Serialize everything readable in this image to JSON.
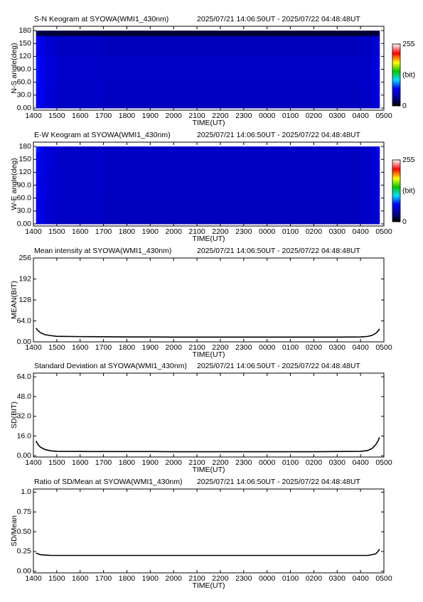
{
  "chart_data": [
    {
      "type": "heatmap",
      "title": "S-N Keogram at SYOWA(WMI1_430nm)",
      "subtitle": "2025/07/21 14:06:50UT - 2025/07/22 04:48:48UT",
      "xlabel": "TIME(UT)",
      "ylabel": "N-S angle(deg)",
      "xlim": [
        14,
        29
      ],
      "ylim": [
        -5,
        190
      ],
      "xticks": [
        {
          "value": 14,
          "label": "1400"
        },
        {
          "value": 15,
          "label": "1500"
        },
        {
          "value": 16,
          "label": "1600"
        },
        {
          "value": 17,
          "label": "1700"
        },
        {
          "value": 18,
          "label": "1800"
        },
        {
          "value": 19,
          "label": "1900"
        },
        {
          "value": 20,
          "label": "2000"
        },
        {
          "value": 21,
          "label": "2100"
        },
        {
          "value": 22,
          "label": "2200"
        },
        {
          "value": 23,
          "label": "2300"
        },
        {
          "value": 24,
          "label": "0000"
        },
        {
          "value": 25,
          "label": "0100"
        },
        {
          "value": 26,
          "label": "0200"
        },
        {
          "value": 27,
          "label": "0300"
        },
        {
          "value": 28,
          "label": "0400"
        },
        {
          "value": 29,
          "label": "0500"
        }
      ],
      "yticks": [
        {
          "value": 0,
          "label": "0.00"
        },
        {
          "value": 30,
          "label": "30.0"
        },
        {
          "value": 60,
          "label": "60.0"
        },
        {
          "value": 90,
          "label": "90.0"
        },
        120,
        150,
        180
      ],
      "colormap": "rainbow",
      "clim": [
        0,
        255
      ],
      "cbar_ticks": [
        0,
        255
      ],
      "cbar_label": "(bit)",
      "xbins": [
        14.11,
        14.25,
        14.5,
        15,
        17,
        19,
        21,
        23,
        25,
        27,
        28,
        28.5,
        28.7,
        28.81
      ],
      "ybins": [
        0,
        10,
        60,
        120,
        168,
        180
      ],
      "z": [
        [
          70,
          62,
          55,
          50,
          48,
          48,
          48,
          48,
          48,
          48,
          50,
          55,
          62,
          75
        ],
        [
          72,
          64,
          57,
          52,
          50,
          50,
          50,
          50,
          50,
          50,
          52,
          57,
          64,
          78
        ],
        [
          74,
          65,
          58,
          53,
          51,
          51,
          51,
          51,
          51,
          51,
          53,
          58,
          66,
          80
        ],
        [
          70,
          62,
          55,
          50,
          48,
          48,
          48,
          48,
          48,
          48,
          50,
          55,
          62,
          76
        ],
        [
          20,
          16,
          14,
          12,
          11,
          11,
          11,
          11,
          11,
          11,
          12,
          14,
          16,
          22
        ]
      ]
    },
    {
      "type": "heatmap",
      "title": "E-W Keogram at SYOWA(WMI1_430nm)",
      "subtitle": "2025/07/21 14:06:50UT - 2025/07/22 04:48:48UT",
      "xlabel": "TIME(UT)",
      "ylabel": "W-E angle(deg)",
      "xlim": [
        14,
        29
      ],
      "ylim": [
        -5,
        190
      ],
      "xticks": [
        {
          "value": 14,
          "label": "1400"
        },
        {
          "value": 15,
          "label": "1500"
        },
        {
          "value": 16,
          "label": "1600"
        },
        {
          "value": 17,
          "label": "1700"
        },
        {
          "value": 18,
          "label": "1800"
        },
        {
          "value": 19,
          "label": "1900"
        },
        {
          "value": 20,
          "label": "2000"
        },
        {
          "value": 21,
          "label": "2100"
        },
        {
          "value": 22,
          "label": "2200"
        },
        {
          "value": 23,
          "label": "2300"
        },
        {
          "value": 24,
          "label": "0000"
        },
        {
          "value": 25,
          "label": "0100"
        },
        {
          "value": 26,
          "label": "0200"
        },
        {
          "value": 27,
          "label": "0300"
        },
        {
          "value": 28,
          "label": "0400"
        },
        {
          "value": 29,
          "label": "0500"
        }
      ],
      "yticks": [
        {
          "value": 0,
          "label": "0.00"
        },
        {
          "value": 30,
          "label": "30.0"
        },
        {
          "value": 60,
          "label": "60.0"
        },
        {
          "value": 90,
          "label": "90.0"
        },
        120,
        150,
        180
      ],
      "colormap": "rainbow",
      "clim": [
        0,
        255
      ],
      "cbar_ticks": [
        0,
        255
      ],
      "cbar_label": "(bit)",
      "xbins": [
        14.11,
        14.25,
        14.5,
        15,
        17,
        19,
        21,
        23,
        25,
        27,
        28,
        28.5,
        28.7,
        28.81
      ],
      "ybins": [
        0,
        10,
        60,
        120,
        168,
        180
      ],
      "z": [
        [
          66,
          60,
          54,
          50,
          48,
          48,
          48,
          48,
          48,
          48,
          50,
          54,
          60,
          70
        ],
        [
          68,
          61,
          55,
          51,
          49,
          49,
          49,
          49,
          49,
          49,
          51,
          55,
          61,
          72
        ],
        [
          70,
          62,
          56,
          52,
          50,
          50,
          50,
          50,
          50,
          50,
          52,
          56,
          63,
          74
        ],
        [
          72,
          63,
          57,
          52,
          50,
          50,
          50,
          50,
          50,
          50,
          52,
          57,
          64,
          78
        ],
        [
          76,
          66,
          58,
          53,
          51,
          51,
          51,
          51,
          51,
          51,
          53,
          58,
          66,
          84
        ]
      ]
    },
    {
      "type": "line",
      "title": "Mean intensity at SYOWA(WMI1_430nm)",
      "subtitle": "2025/07/21 14:06:50UT - 2025/07/22 04:48:48UT",
      "xlabel": "TIME(UT)",
      "ylabel": "MEAN(BIT)",
      "xlim": [
        14,
        29
      ],
      "ylim": [
        0,
        256
      ],
      "color": "#000000",
      "xticks": [
        {
          "value": 14,
          "label": "1400"
        },
        {
          "value": 15,
          "label": "1500"
        },
        {
          "value": 16,
          "label": "1600"
        },
        {
          "value": 17,
          "label": "1700"
        },
        {
          "value": 18,
          "label": "1800"
        },
        {
          "value": 19,
          "label": "1900"
        },
        {
          "value": 20,
          "label": "2000"
        },
        {
          "value": 21,
          "label": "2100"
        },
        {
          "value": 22,
          "label": "2200"
        },
        {
          "value": 23,
          "label": "2300"
        },
        {
          "value": 24,
          "label": "0000"
        },
        {
          "value": 25,
          "label": "0100"
        },
        {
          "value": 26,
          "label": "0200"
        },
        {
          "value": 27,
          "label": "0300"
        },
        {
          "value": 28,
          "label": "0400"
        },
        {
          "value": 29,
          "label": "0500"
        }
      ],
      "yticks": [
        {
          "value": 0,
          "label": "0.00"
        },
        {
          "value": 64,
          "label": "64.0"
        },
        128,
        192,
        256
      ],
      "x": [
        14.11,
        14.2,
        14.3,
        14.5,
        14.75,
        15,
        16,
        17,
        18,
        19,
        20,
        21,
        22,
        23,
        24,
        25,
        26,
        27,
        28,
        28.3,
        28.5,
        28.65,
        28.75,
        28.81
      ],
      "values": [
        42,
        34,
        28,
        22,
        19,
        17,
        16,
        15.5,
        15,
        15,
        14.5,
        14.5,
        14.5,
        14.5,
        14.5,
        14.5,
        14.5,
        14.5,
        15,
        16.5,
        20,
        26,
        33,
        40
      ]
    },
    {
      "type": "line",
      "title": "Standard Deviation at SYOWA(WMI1_430nm)",
      "subtitle": "2025/07/21 14:06:50UT - 2025/07/22 04:48:48UT",
      "xlabel": "TIME(UT)",
      "ylabel": "SD(BIT)",
      "xlim": [
        14,
        29
      ],
      "ylim": [
        -1,
        67
      ],
      "color": "#000000",
      "xticks": [
        {
          "value": 14,
          "label": "1400"
        },
        {
          "value": 15,
          "label": "1500"
        },
        {
          "value": 16,
          "label": "1600"
        },
        {
          "value": 17,
          "label": "1700"
        },
        {
          "value": 18,
          "label": "1800"
        },
        {
          "value": 19,
          "label": "1900"
        },
        {
          "value": 20,
          "label": "2000"
        },
        {
          "value": 21,
          "label": "2100"
        },
        {
          "value": 22,
          "label": "2200"
        },
        {
          "value": 23,
          "label": "2300"
        },
        {
          "value": 24,
          "label": "0000"
        },
        {
          "value": 25,
          "label": "0100"
        },
        {
          "value": 26,
          "label": "0200"
        },
        {
          "value": 27,
          "label": "0300"
        },
        {
          "value": 28,
          "label": "0400"
        },
        {
          "value": 29,
          "label": "0500"
        }
      ],
      "yticks": [
        {
          "value": 0,
          "label": "0.00"
        },
        {
          "value": 16,
          "label": "16.0"
        },
        {
          "value": 32,
          "label": "32.0"
        },
        {
          "value": 48,
          "label": "48.0"
        },
        {
          "value": 64,
          "label": "64.0"
        }
      ],
      "x": [
        14.11,
        14.2,
        14.3,
        14.5,
        14.75,
        15,
        16,
        17,
        18,
        19,
        20,
        21,
        22,
        23,
        24,
        25,
        26,
        27,
        28,
        28.3,
        28.5,
        28.65,
        28.75,
        28.81
      ],
      "values": [
        12,
        9,
        7,
        5,
        4,
        3.6,
        3.5,
        3.4,
        3.4,
        3.4,
        3.3,
        3.3,
        3.3,
        3.3,
        3.3,
        3.3,
        3.3,
        3.4,
        3.6,
        4.2,
        6,
        9,
        12,
        15
      ]
    },
    {
      "type": "line",
      "title": "Ratio of SD/Mean at SYOWA(WMI1_430nm)",
      "subtitle": "2025/07/21 14:06:50UT - 2025/07/22 04:48:48UT",
      "xlabel": "TIME(UT)",
      "ylabel": "SD/Mean",
      "xlim": [
        14,
        29
      ],
      "ylim": [
        -0.02,
        1.04
      ],
      "color": "#000000",
      "xticks": [
        {
          "value": 14,
          "label": "1400"
        },
        {
          "value": 15,
          "label": "1500"
        },
        {
          "value": 16,
          "label": "1600"
        },
        {
          "value": 17,
          "label": "1700"
        },
        {
          "value": 18,
          "label": "1800"
        },
        {
          "value": 19,
          "label": "1900"
        },
        {
          "value": 20,
          "label": "2000"
        },
        {
          "value": 21,
          "label": "2100"
        },
        {
          "value": 22,
          "label": "2200"
        },
        {
          "value": 23,
          "label": "2300"
        },
        {
          "value": 24,
          "label": "0000"
        },
        {
          "value": 25,
          "label": "0100"
        },
        {
          "value": 26,
          "label": "0200"
        },
        {
          "value": 27,
          "label": "0300"
        },
        {
          "value": 28,
          "label": "0400"
        },
        {
          "value": 29,
          "label": "0500"
        }
      ],
      "yticks": [
        {
          "value": 0,
          "label": "0.00"
        },
        0.25,
        {
          "value": 0.5,
          "label": "0.50"
        },
        0.75,
        {
          "value": 1,
          "label": "1.0"
        }
      ],
      "x": [
        14.11,
        14.2,
        14.3,
        14.5,
        14.75,
        15,
        16,
        17,
        18,
        19,
        20,
        21,
        22,
        23,
        24,
        25,
        26,
        27,
        28,
        28.3,
        28.5,
        28.65,
        28.75,
        28.81
      ],
      "values": [
        0.23,
        0.22,
        0.21,
        0.205,
        0.2,
        0.2,
        0.2,
        0.2,
        0.2,
        0.2,
        0.2,
        0.2,
        0.2,
        0.2,
        0.2,
        0.2,
        0.2,
        0.2,
        0.2,
        0.2,
        0.21,
        0.22,
        0.25,
        0.28
      ]
    }
  ]
}
